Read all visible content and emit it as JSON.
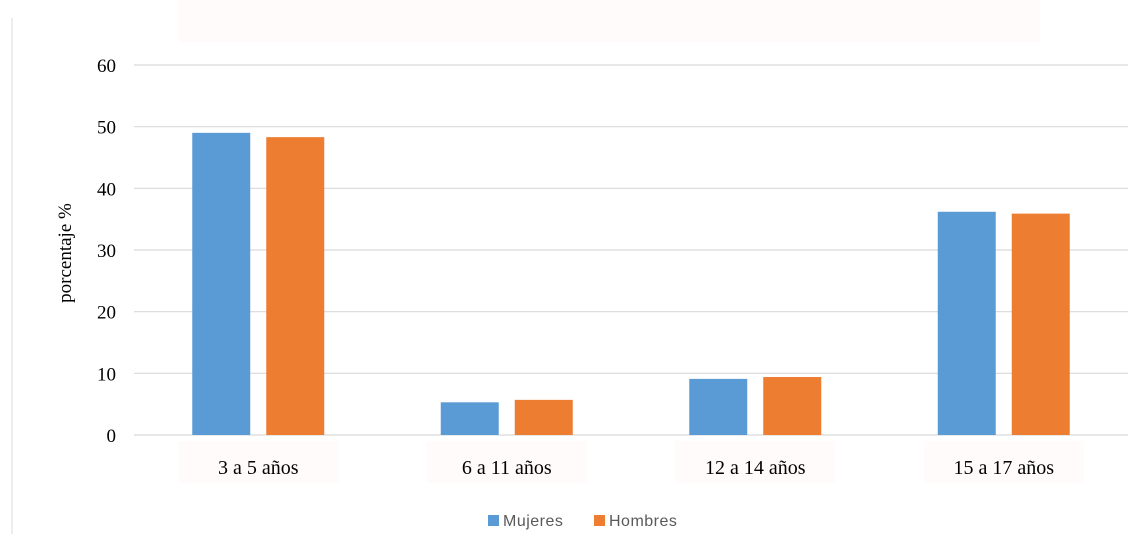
{
  "chart_data": {
    "type": "bar",
    "title": "",
    "xlabel": "",
    "ylabel": "porcentaje %",
    "categories": [
      "3 a 5 años",
      "6 a 11 años",
      "12 a 14 años",
      "15 a 17 años"
    ],
    "series": [
      {
        "name": "Mujeres",
        "values": [
          49,
          5.3,
          9.1,
          36.2
        ],
        "color": "#5B9BD5"
      },
      {
        "name": "Hombres",
        "values": [
          48.3,
          5.7,
          9.4,
          35.9
        ],
        "color": "#ED7D31"
      }
    ],
    "ylim": [
      0,
      60
    ],
    "yticks": [
      0,
      10,
      20,
      30,
      40,
      50,
      60
    ],
    "grid": true,
    "legend": "bottom-center"
  }
}
